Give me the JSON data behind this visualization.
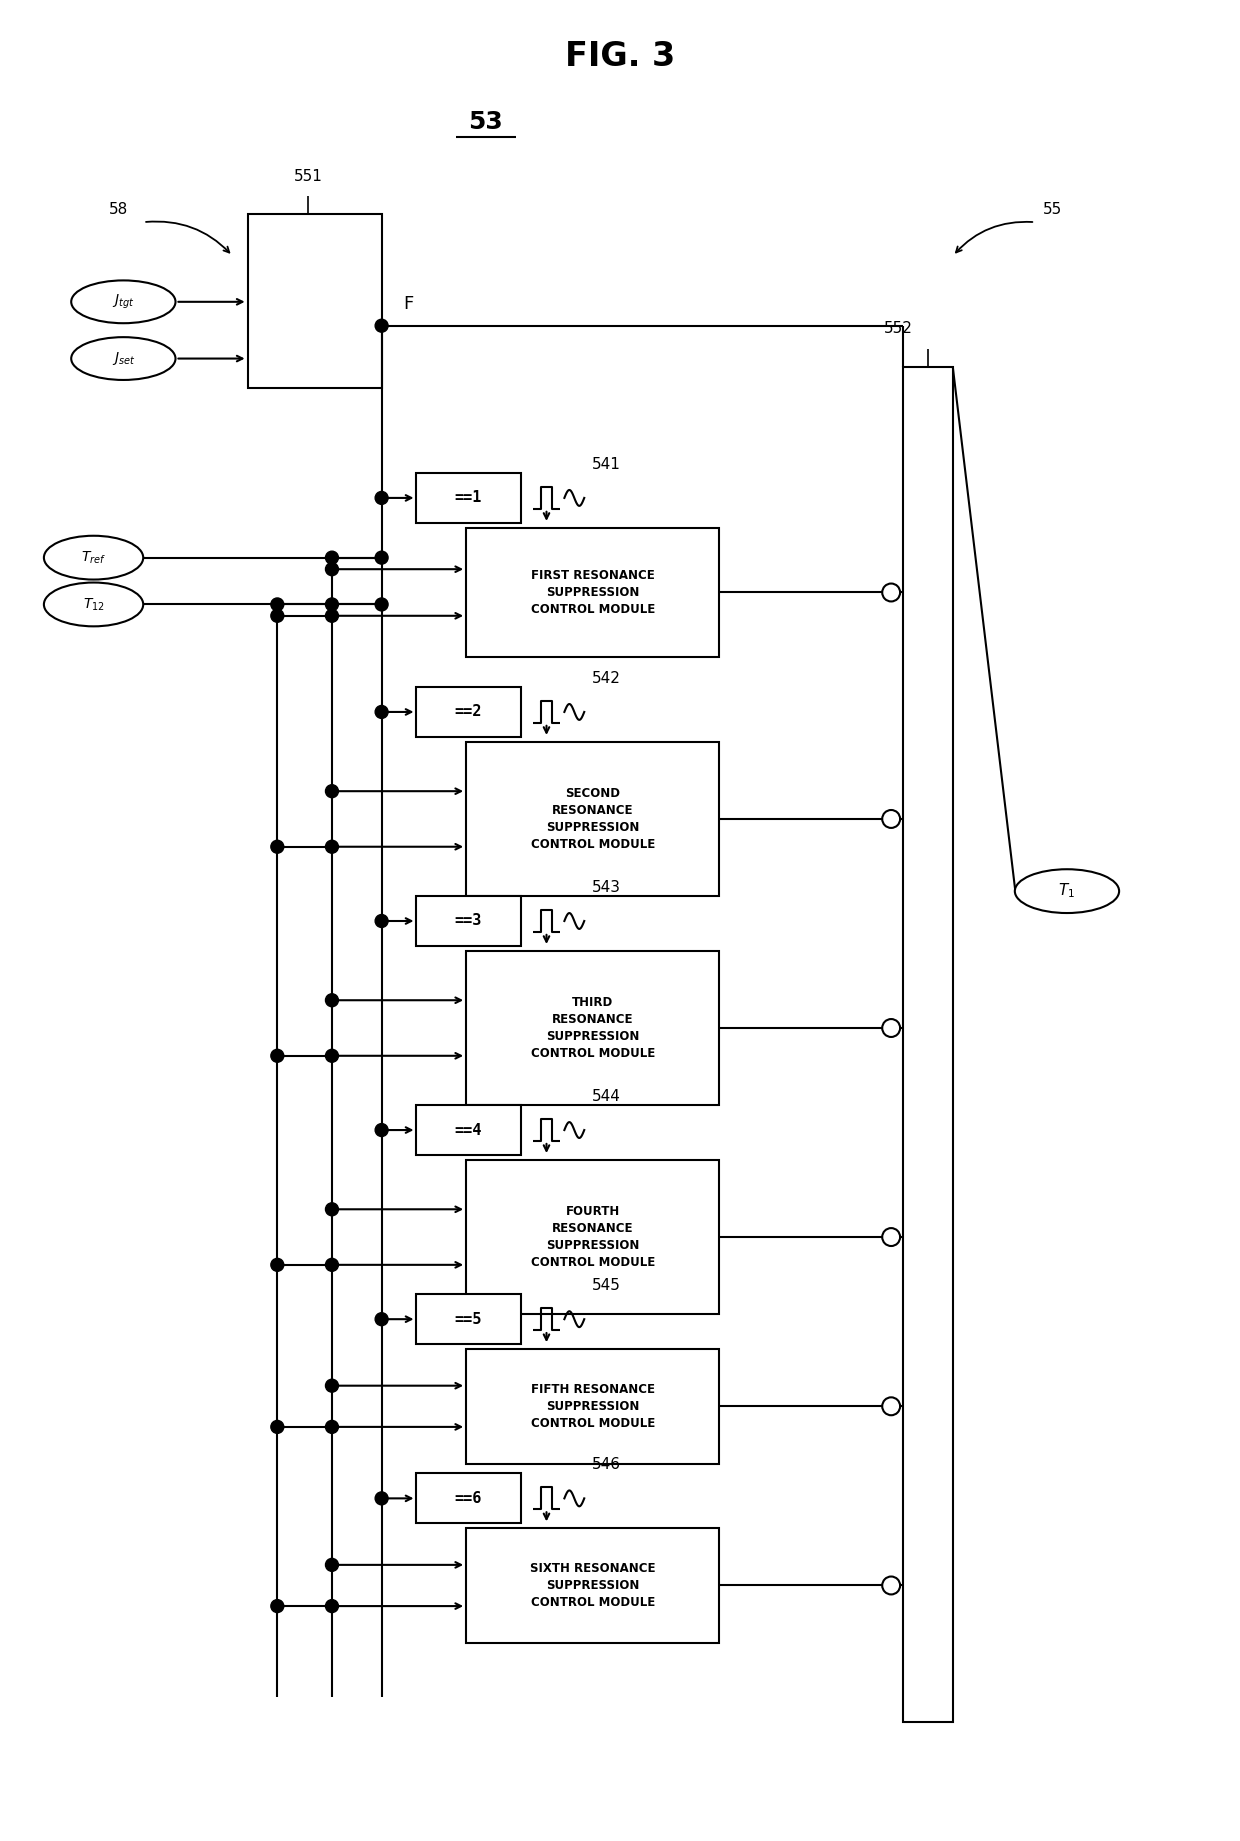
{
  "title": "FIG. 3",
  "subtitle": "53",
  "fig_width": 12.4,
  "fig_height": 18.41,
  "bg_color": "#ffffff",
  "line_color": "#000000",
  "modules": [
    {
      "ordinal": "FIRST",
      "num": 1,
      "label_num": "541",
      "text": "FIRST RESONANCE\nSUPPRESSION\nCONTROL MODULE"
    },
    {
      "ordinal": "SECOND",
      "num": 2,
      "label_num": "542",
      "text": "SECOND\nRESONANCE\nSUPPRESSION\nCONTROL MODULE"
    },
    {
      "ordinal": "THIRD",
      "num": 3,
      "label_num": "543",
      "text": "THIRD\nRESONANCE\nSUPPRESSION\nCONTROL MODULE"
    },
    {
      "ordinal": "FOURTH",
      "num": 4,
      "label_num": "544",
      "text": "FOURTH\nRESONANCE\nSUPPRESSION\nCONTROL MODULE"
    },
    {
      "ordinal": "FIFTH",
      "num": 5,
      "label_num": "545",
      "text": "FIFTH RESONANCE\nSUPPRESSION\nCONTROL MODULE"
    },
    {
      "ordinal": "SIXTH",
      "num": 6,
      "label_num": "546",
      "text": "SIXTH RESONANCE\nSUPPRESSION\nCONTROL MODULE"
    }
  ]
}
